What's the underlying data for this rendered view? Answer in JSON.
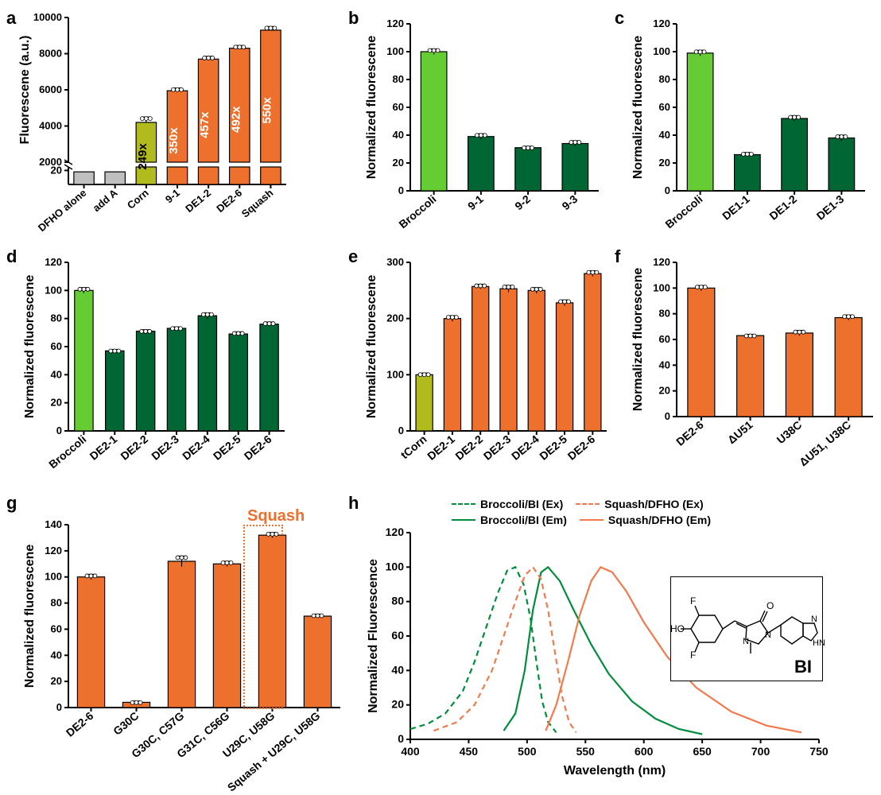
{
  "colors": {
    "orange": "#ee702d",
    "olive": "#b2bb1e",
    "lightgreen": "#66cc33",
    "darkgreen": "#006633",
    "gray": "#bfbfbf",
    "black": "#000000",
    "white": "#ffffff",
    "squash_line": "#f37a4c",
    "broccoli_line": "#008e3c"
  },
  "global": {
    "label_fontsize": 22,
    "axis_fontsize": 13,
    "tick_fontsize": 13,
    "font_family": "Arial"
  },
  "panels": {
    "a": {
      "label": "a",
      "type": "bar",
      "ylabel": "Fluorescene (a.u.)",
      "broken_axis": true,
      "ylim_lower": [
        0,
        25
      ],
      "ylim_upper": [
        2000,
        10000
      ],
      "ytick_lower": [
        20
      ],
      "ytick_upper": [
        2000,
        4000,
        6000,
        8000,
        10000
      ],
      "categories": [
        "DFHO alone",
        "add A",
        "Corn",
        "9-1",
        "DE1-2",
        "DE2-6",
        "Squash"
      ],
      "values": [
        18,
        18,
        4200,
        5950,
        7700,
        8300,
        9300
      ],
      "errors": [
        0,
        0,
        300,
        150,
        150,
        150,
        200
      ],
      "bar_colors": [
        "#bfbfbf",
        "#bfbfbf",
        "#b2bb1e",
        "#ee702d",
        "#ee702d",
        "#ee702d",
        "#ee702d"
      ],
      "bar_text": [
        "",
        "",
        "249x",
        "350x",
        "457x",
        "492x",
        "550x"
      ],
      "bar_text_color": [
        "",
        "",
        "#000000",
        "#ffffff",
        "#ffffff",
        "#ffffff",
        "#ffffff"
      ],
      "bar_width": 0.65,
      "xlabel_rotation": -45
    },
    "b": {
      "label": "b",
      "type": "bar",
      "ylabel": "Normalized fluorescene",
      "ylim": [
        0,
        120
      ],
      "ytick_step": 20,
      "categories": [
        "Broccoli",
        "9-1",
        "9-2",
        "9-3"
      ],
      "values": [
        100,
        39,
        31,
        34
      ],
      "errors": [
        2,
        2,
        1,
        2
      ],
      "bar_colors": [
        "#66cc33",
        "#006633",
        "#006633",
        "#006633"
      ],
      "bar_width": 0.55,
      "xlabel_rotation": -45
    },
    "c": {
      "label": "c",
      "type": "bar",
      "ylabel": "Normalized fluorescene",
      "ylim": [
        0,
        120
      ],
      "ytick_step": 20,
      "categories": [
        "Broccoli",
        "DE1-1",
        "DE1-2",
        "DE1-3"
      ],
      "values": [
        99,
        26,
        52,
        38
      ],
      "errors": [
        2,
        1.5,
        2,
        2
      ],
      "bar_colors": [
        "#66cc33",
        "#006633",
        "#006633",
        "#006633"
      ],
      "bar_width": 0.55,
      "xlabel_rotation": -45
    },
    "d": {
      "label": "d",
      "type": "bar",
      "ylabel": "Normalized fluorescene",
      "ylim": [
        0,
        120
      ],
      "ytick_step": 20,
      "categories": [
        "Broccoli",
        "DE2-1",
        "DE2-2",
        "DE2-3",
        "DE2-4",
        "DE2-5",
        "DE2-6"
      ],
      "values": [
        100,
        57,
        71,
        73,
        82,
        69,
        76
      ],
      "errors": [
        2,
        1,
        1,
        1,
        2,
        1.5,
        1.5
      ],
      "bar_colors": [
        "#66cc33",
        "#006633",
        "#006633",
        "#006633",
        "#006633",
        "#006633",
        "#006633"
      ],
      "bar_width": 0.6,
      "xlabel_rotation": -45
    },
    "e": {
      "label": "e",
      "type": "bar",
      "ylabel": "Normalized fluorescene",
      "ylim": [
        0,
        300
      ],
      "ytick_step": 100,
      "categories": [
        "tCorn",
        "DE2-1",
        "DE2-2",
        "DE2-3",
        "DE2-4",
        "DE2-5",
        "DE2-6"
      ],
      "values": [
        100,
        200,
        257,
        253,
        250,
        228,
        280
      ],
      "errors": [
        3,
        5,
        4,
        6,
        5,
        5,
        5
      ],
      "bar_colors": [
        "#b2bb1e",
        "#ee702d",
        "#ee702d",
        "#ee702d",
        "#ee702d",
        "#ee702d",
        "#ee702d"
      ],
      "bar_width": 0.6,
      "xlabel_rotation": -45
    },
    "f": {
      "label": "f",
      "type": "bar",
      "ylabel": "Normalized fluorescene",
      "ylim": [
        0,
        120
      ],
      "ytick_step": 20,
      "categories": [
        "DE2-6",
        "ΔU51",
        "U38C",
        "ΔU51, U38C"
      ],
      "values": [
        100,
        63,
        65,
        77
      ],
      "errors": [
        2,
        1,
        2,
        2
      ],
      "bar_colors": [
        "#ee702d",
        "#ee702d",
        "#ee702d",
        "#ee702d"
      ],
      "bar_width": 0.55,
      "xlabel_rotation": -45
    },
    "g": {
      "label": "g",
      "type": "bar",
      "ylabel": "Normalized fluorescene",
      "ylim": [
        0,
        140
      ],
      "ytick_step": 20,
      "categories": [
        "DE2-6",
        "G30C",
        "G30C, C57G",
        "G31C, C56G",
        "U29C, U58G",
        "Squash + U29C, U58G"
      ],
      "values": [
        100,
        4,
        112,
        110,
        132,
        70
      ],
      "errors": [
        2,
        1,
        4,
        2,
        2,
        1.5
      ],
      "bar_colors": [
        "#ee702d",
        "#ee702d",
        "#ee702d",
        "#ee702d",
        "#ee702d",
        "#ee702d"
      ],
      "bar_width": 0.6,
      "xlabel_rotation": -45,
      "highlight_index": 4,
      "highlight_label": "Squash"
    },
    "h": {
      "label": "h",
      "type": "line",
      "xlabel": "Wavelength (nm)",
      "ylabel": "Normalized Fluorescence",
      "xlim": [
        400,
        750
      ],
      "xtick_step": 50,
      "ylim": [
        0,
        120
      ],
      "ytick_step": 20,
      "legend": [
        {
          "label": "Broccoli/BI (Ex)",
          "color": "#008e3c",
          "dash": true
        },
        {
          "label": "Broccoli/BI (Em)",
          "color": "#008e3c",
          "dash": false
        },
        {
          "label": "Squash/DFHO (Ex)",
          "color": "#f37a4c",
          "dash": true
        },
        {
          "label": "Squash/DFHO (Em)",
          "color": "#f37a4c",
          "dash": false
        }
      ],
      "series": {
        "broccoli_ex": {
          "color": "#008e3c",
          "dash": true,
          "points": [
            [
              400,
              6
            ],
            [
              415,
              9
            ],
            [
              430,
              15
            ],
            [
              445,
              28
            ],
            [
              455,
              45
            ],
            [
              465,
              65
            ],
            [
              475,
              85
            ],
            [
              483,
              98
            ],
            [
              490,
              100
            ],
            [
              497,
              90
            ],
            [
              503,
              70
            ],
            [
              508,
              45
            ],
            [
              513,
              22
            ],
            [
              518,
              10
            ],
            [
              525,
              4
            ]
          ]
        },
        "broccoli_em": {
          "color": "#008e3c",
          "dash": false,
          "points": [
            [
              480,
              5
            ],
            [
              490,
              15
            ],
            [
              498,
              40
            ],
            [
              505,
              75
            ],
            [
              512,
              97
            ],
            [
              518,
              100
            ],
            [
              528,
              92
            ],
            [
              540,
              75
            ],
            [
              555,
              55
            ],
            [
              570,
              38
            ],
            [
              590,
              22
            ],
            [
              610,
              12
            ],
            [
              630,
              6
            ],
            [
              650,
              3
            ]
          ]
        },
        "squash_ex": {
          "color": "#f37a4c",
          "dash": true,
          "points": [
            [
              420,
              5
            ],
            [
              440,
              10
            ],
            [
              455,
              20
            ],
            [
              470,
              40
            ],
            [
              480,
              60
            ],
            [
              490,
              80
            ],
            [
              498,
              95
            ],
            [
              505,
              100
            ],
            [
              512,
              93
            ],
            [
              518,
              75
            ],
            [
              524,
              50
            ],
            [
              530,
              25
            ],
            [
              536,
              10
            ],
            [
              542,
              4
            ]
          ]
        },
        "squash_em": {
          "color": "#f37a4c",
          "dash": false,
          "points": [
            [
              516,
              5
            ],
            [
              525,
              20
            ],
            [
              535,
              45
            ],
            [
              545,
              72
            ],
            [
              555,
              92
            ],
            [
              563,
              100
            ],
            [
              573,
              97
            ],
            [
              585,
              86
            ],
            [
              600,
              68
            ],
            [
              620,
              48
            ],
            [
              645,
              30
            ],
            [
              675,
              16
            ],
            [
              705,
              8
            ],
            [
              735,
              4
            ]
          ]
        }
      },
      "inset_label": "BI"
    }
  }
}
